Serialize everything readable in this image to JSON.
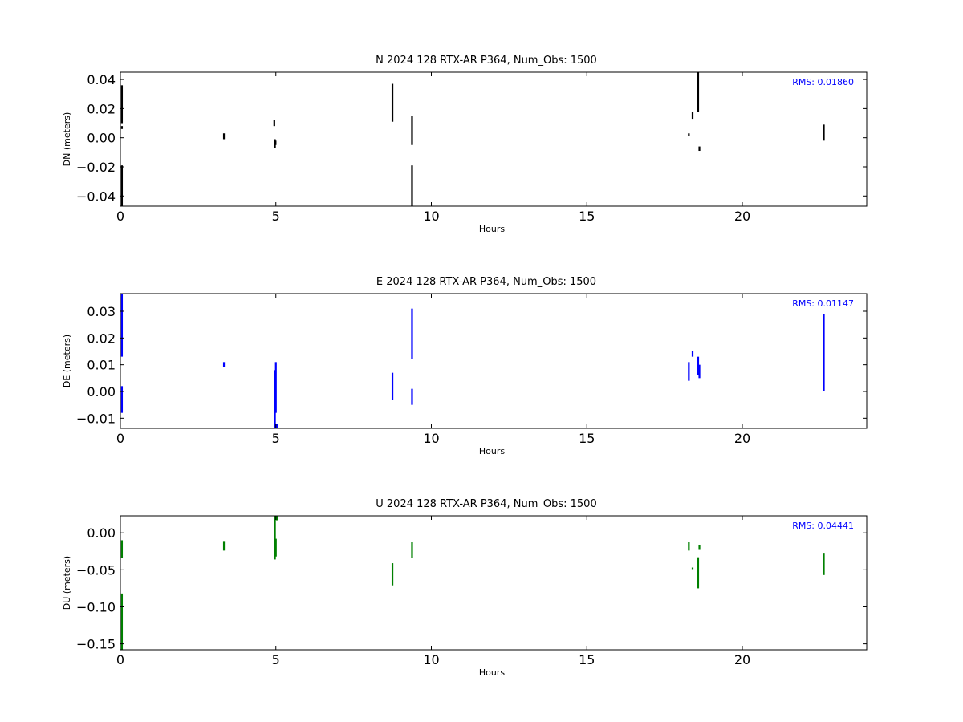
{
  "chart_data": [
    {
      "type": "scatter",
      "title": "N 2024 128 RTX-AR  P364, Num_Obs: 1500",
      "xlabel": "Hours",
      "ylabel": "DN (meters)",
      "xlim": [
        0,
        24
      ],
      "ylim": [
        -0.047,
        0.045
      ],
      "xticks": [
        0,
        5,
        10,
        15,
        20
      ],
      "yticks": [
        -0.04,
        -0.02,
        0.0,
        0.02,
        0.04
      ],
      "ytick_labels": [
        "−0.04",
        "−0.02",
        "0.00",
        "0.02",
        "0.04"
      ],
      "color": "#000000",
      "grid": false,
      "rms_label": "RMS:  0.01860",
      "segments": [
        {
          "x": 0.05,
          "y": [
            -0.047,
            -0.019
          ]
        },
        {
          "x": 0.05,
          "y": [
            0.006,
            0.008
          ]
        },
        {
          "x": 0.05,
          "y": [
            0.01,
            0.036
          ]
        },
        {
          "x": 3.33,
          "y": [
            -0.001,
            0.003
          ]
        },
        {
          "x": 4.95,
          "y": [
            0.008,
            0.012
          ]
        },
        {
          "x": 4.97,
          "y": [
            -0.007,
            -0.001
          ]
        },
        {
          "x": 4.99,
          "y": [
            -0.005,
            -0.002
          ]
        },
        {
          "x": 8.75,
          "y": [
            0.011,
            0.037
          ]
        },
        {
          "x": 9.38,
          "y": [
            -0.005,
            0.015
          ]
        },
        {
          "x": 9.38,
          "y": [
            -0.047,
            -0.019
          ]
        },
        {
          "x": 18.28,
          "y": [
            0.001,
            0.003
          ]
        },
        {
          "x": 18.4,
          "y": [
            0.013,
            0.018
          ]
        },
        {
          "x": 18.58,
          "y": [
            0.018,
            0.045
          ]
        },
        {
          "x": 18.62,
          "y": [
            -0.009,
            -0.006
          ]
        },
        {
          "x": 22.62,
          "y": [
            -0.002,
            0.009
          ]
        }
      ]
    },
    {
      "type": "scatter",
      "title": "E 2024 128 RTX-AR  P364, Num_Obs: 1500",
      "xlabel": "Hours",
      "ylabel": "DE (meters)",
      "xlim": [
        0,
        24
      ],
      "ylim": [
        -0.0138,
        0.0366
      ],
      "xticks": [
        0,
        5,
        10,
        15,
        20
      ],
      "yticks": [
        -0.01,
        0.0,
        0.01,
        0.02,
        0.03
      ],
      "ytick_labels": [
        "−0.01",
        "0.00",
        "0.01",
        "0.02",
        "0.03"
      ],
      "color": "#0000ff",
      "grid": false,
      "rms_label": "RMS:  0.01147",
      "segments": [
        {
          "x": 0.05,
          "y": [
            -0.008,
            0.002
          ]
        },
        {
          "x": 0.05,
          "y": [
            0.013,
            0.0366
          ]
        },
        {
          "x": 3.33,
          "y": [
            0.009,
            0.011
          ]
        },
        {
          "x": 4.97,
          "y": [
            -0.0138,
            0.008
          ]
        },
        {
          "x": 5.0,
          "y": [
            -0.008,
            0.011
          ]
        },
        {
          "x": 5.03,
          "y": [
            -0.0138,
            -0.012
          ]
        },
        {
          "x": 8.75,
          "y": [
            -0.003,
            0.007
          ]
        },
        {
          "x": 9.38,
          "y": [
            0.012,
            0.031
          ]
        },
        {
          "x": 9.38,
          "y": [
            -0.005,
            0.001
          ]
        },
        {
          "x": 18.28,
          "y": [
            0.004,
            0.011
          ]
        },
        {
          "x": 18.4,
          "y": [
            0.013,
            0.015
          ]
        },
        {
          "x": 18.58,
          "y": [
            0.006,
            0.013
          ]
        },
        {
          "x": 18.62,
          "y": [
            0.005,
            0.01
          ]
        },
        {
          "x": 22.62,
          "y": [
            0.0,
            0.029
          ]
        }
      ]
    },
    {
      "type": "scatter",
      "title": "U 2024 128 RTX-AR  P364, Num_Obs: 1500",
      "xlabel": "Hours",
      "ylabel": "DU (meters)",
      "xlim": [
        0,
        24
      ],
      "ylim": [
        -0.158,
        0.023
      ],
      "xticks": [
        0,
        5,
        10,
        15,
        20
      ],
      "yticks": [
        -0.15,
        -0.1,
        -0.05,
        0.0
      ],
      "ytick_labels": [
        "−0.15",
        "−0.10",
        "−0.05",
        "0.00"
      ],
      "color": "#008000",
      "grid": false,
      "rms_label": "RMS:  0.04441",
      "segments": [
        {
          "x": 0.05,
          "y": [
            -0.034,
            -0.01
          ]
        },
        {
          "x": 0.05,
          "y": [
            -0.158,
            -0.082
          ]
        },
        {
          "x": 3.33,
          "y": [
            -0.024,
            -0.011
          ]
        },
        {
          "x": 4.97,
          "y": [
            -0.036,
            0.023
          ]
        },
        {
          "x": 5.0,
          "y": [
            -0.032,
            -0.008
          ]
        },
        {
          "x": 5.03,
          "y": [
            0.017,
            0.023
          ]
        },
        {
          "x": 8.75,
          "y": [
            -0.071,
            -0.041
          ]
        },
        {
          "x": 9.38,
          "y": [
            -0.034,
            -0.012
          ]
        },
        {
          "x": 18.28,
          "y": [
            -0.024,
            -0.012
          ]
        },
        {
          "x": 18.4,
          "y": [
            -0.049,
            -0.047
          ]
        },
        {
          "x": 18.58,
          "y": [
            -0.075,
            -0.033
          ]
        },
        {
          "x": 18.62,
          "y": [
            -0.022,
            -0.016
          ]
        },
        {
          "x": 22.62,
          "y": [
            -0.057,
            -0.027
          ]
        }
      ]
    }
  ]
}
